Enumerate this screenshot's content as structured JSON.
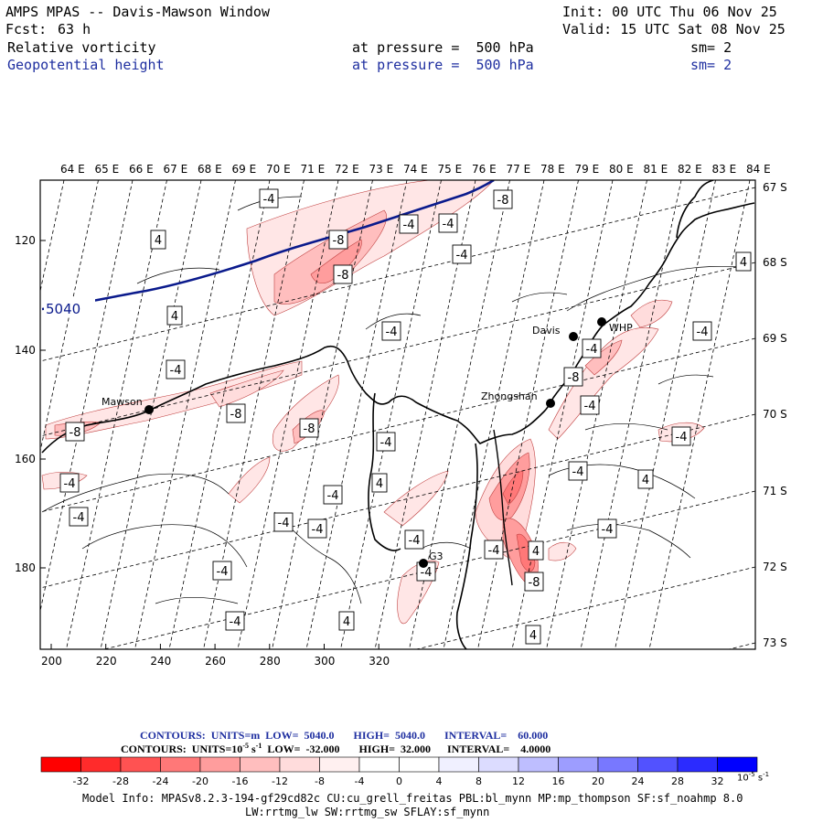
{
  "header": {
    "title": "AMPS MPAS -- Davis-Mawson Window",
    "init": "Init: 00 UTC Thu 06 Nov 25",
    "fcst_label": "Fcst:",
    "fcst_value": "63 h",
    "valid": "Valid: 15 UTC Sat 08 Nov 25",
    "field1": "Relative vorticity",
    "field1_level": "at pressure =  500 hPa",
    "field1_sm": "sm= 2",
    "field2": "Geopotential height",
    "field2_level": "at pressure =  500 hPa",
    "field2_sm": "sm= 2"
  },
  "map": {
    "top_lon_labels": [
      "64 E",
      "65 E",
      "66 E",
      "67 E",
      "68 E",
      "69 E",
      "70 E",
      "71 E",
      "72 E",
      "73 E",
      "74 E",
      "75 E",
      "76 E",
      "77 E",
      "78 E",
      "79 E",
      "80 E",
      "81 E",
      "82 E",
      "83 E",
      "84 E"
    ],
    "right_lat_labels": [
      "67 S",
      "68 S",
      "69 S",
      "70 S",
      "71 S",
      "72 S",
      "73 S"
    ],
    "left_y_ticks": [
      "120",
      "140",
      "160",
      "180"
    ],
    "bottom_x_ticks": [
      "200",
      "220",
      "240",
      "260",
      "280",
      "300",
      "320"
    ],
    "stations": [
      {
        "name": "Mawson"
      },
      {
        "name": "Davis"
      },
      {
        "name": "WHP"
      },
      {
        "name": "Zhongshan"
      },
      {
        "name": "G3"
      }
    ],
    "height_contour_label": "5040",
    "vort_labels": [
      "-4",
      "-8",
      "4"
    ],
    "colors": {
      "frame": "#000000",
      "height": "#0a1a8c",
      "vort_neg": "#ff0000",
      "vort_pos": "#0000ff"
    }
  },
  "colorbar": {
    "contours_line1": "CONTOURS:  UNITS=m  LOW=  5040.0       HIGH=  5040.0       INTERVAL=    60.000",
    "contours_line2": "CONTOURS:  UNITS=10",
    "contours_line2_exp": "-5",
    "contours_line2_rest": " s",
    "contours_line2_exp2": "-1",
    "contours_line2_tail": "  LOW=  -32.000       HIGH=  32.000      INTERVAL=    4.0000",
    "tick_labels": [
      "-32",
      "-28",
      "-24",
      "-20",
      "-16",
      "-12",
      "-8",
      "-4",
      "0",
      "4",
      "8",
      "12",
      "16",
      "20",
      "24",
      "28",
      "32"
    ],
    "units": "10",
    "units_exp": "-5",
    "units_rest": " s",
    "units_exp2": "-1",
    "colors": [
      "#ff0000",
      "#ff2b2b",
      "#ff5252",
      "#ff7878",
      "#ff9d9d",
      "#ffbebe",
      "#ffdcdc",
      "#fff0f0",
      "#ffffff",
      "#ffffff",
      "#f0f0ff",
      "#dcdcff",
      "#bebeff",
      "#9d9dff",
      "#7878ff",
      "#5252ff",
      "#2b2bff",
      "#0000ff"
    ]
  },
  "footer": {
    "line1": "Model Info: MPASv8.2.3-194-gf29cd82c CU:cu_grell_freitas PBL:bl_mynn MP:mp_thompson SF:sf_noahmp 8.0",
    "line2": "LW:rrtmg_lw SW:rrtmg_sw SFLAY:sf_mynn"
  }
}
